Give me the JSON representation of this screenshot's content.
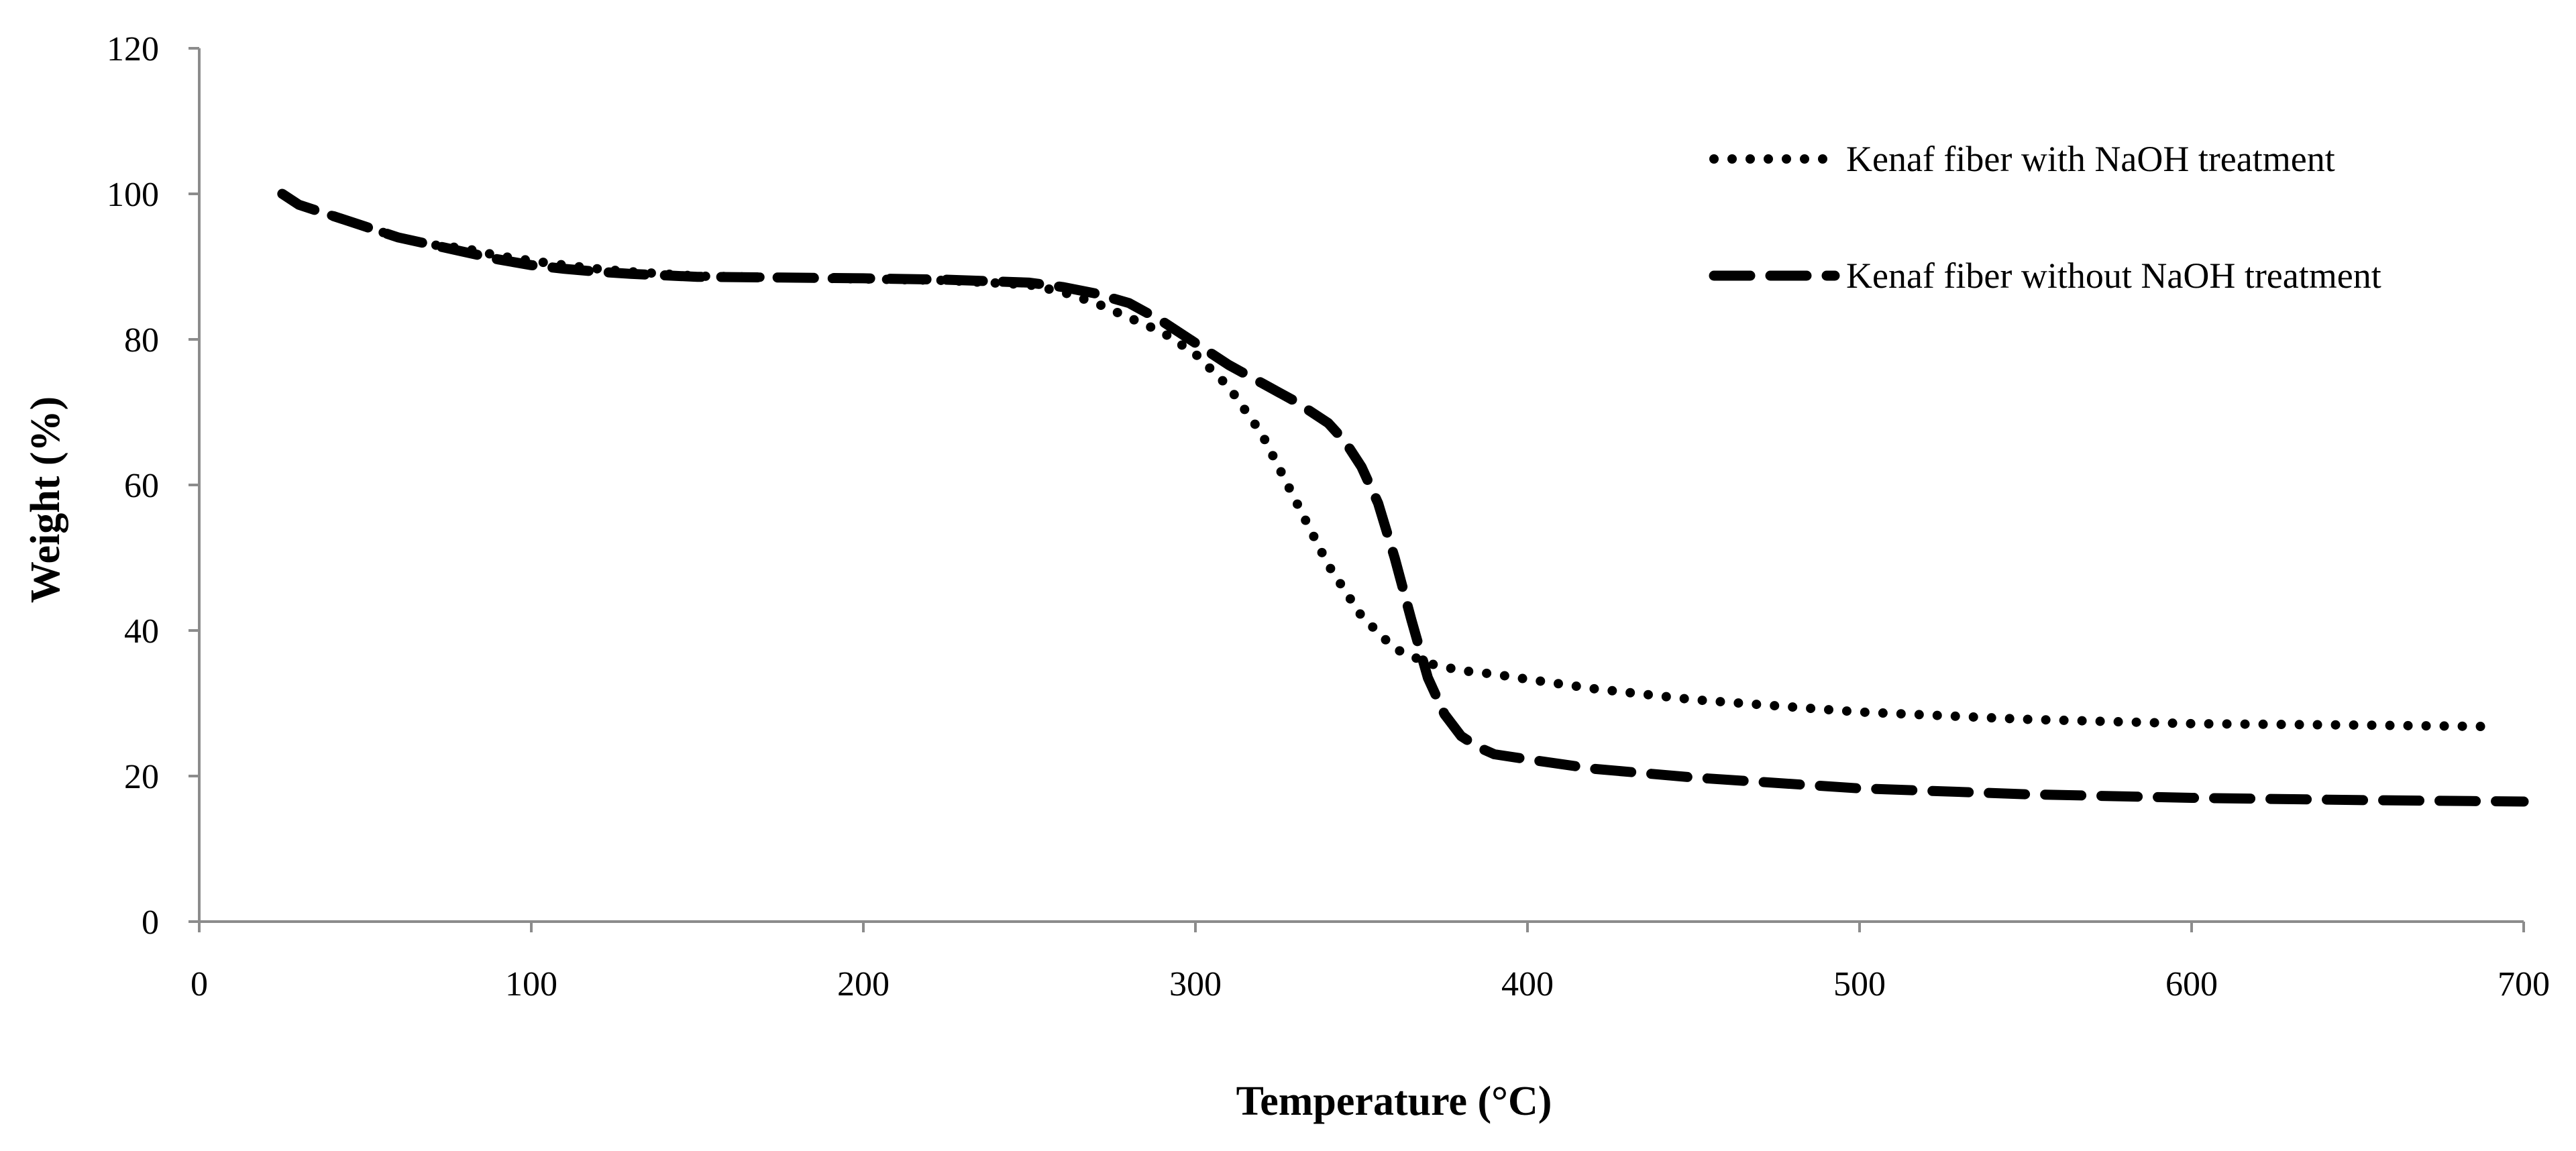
{
  "chart_data": {
    "type": "line",
    "title": "",
    "xlabel": "Temperature (°C)",
    "ylabel": "Weight (%)",
    "xlim": [
      0,
      700
    ],
    "ylim": [
      0,
      120
    ],
    "xticks": [
      0,
      100,
      200,
      300,
      400,
      500,
      600,
      700
    ],
    "yticks": [
      0,
      20,
      40,
      60,
      80,
      100,
      120
    ],
    "grid": false,
    "legend_position": "top-right",
    "series": [
      {
        "name": "Kenaf fiber with NaOH treatment",
        "style": "dotted",
        "color": "#000000",
        "x": [
          25,
          30,
          40,
          50,
          60,
          70,
          80,
          90,
          100,
          110,
          120,
          130,
          140,
          150,
          175,
          200,
          225,
          250,
          260,
          270,
          280,
          290,
          300,
          310,
          320,
          330,
          340,
          350,
          360,
          370,
          375,
          380,
          390,
          400,
          420,
          450,
          500,
          550,
          600,
          650,
          690
        ],
        "y": [
          100,
          98.5,
          97,
          95.5,
          94,
          93,
          92.5,
          91.5,
          90.8,
          90.2,
          89.7,
          89.3,
          89,
          88.7,
          88.5,
          88.3,
          88.1,
          87.5,
          86.5,
          85,
          83,
          81,
          78,
          73.5,
          67,
          58,
          49,
          42,
          37.5,
          35.5,
          35,
          34.5,
          34,
          33.3,
          32,
          30.5,
          28.8,
          27.8,
          27.2,
          27,
          26.8
        ]
      },
      {
        "name": "Kenaf fiber without NaOH treatment",
        "style": "dashed",
        "color": "#000000",
        "x": [
          25,
          30,
          40,
          50,
          60,
          70,
          80,
          90,
          100,
          110,
          120,
          130,
          140,
          150,
          175,
          200,
          225,
          250,
          260,
          270,
          280,
          290,
          300,
          310,
          320,
          330,
          340,
          345,
          350,
          355,
          360,
          365,
          370,
          375,
          380,
          385,
          390,
          400,
          420,
          450,
          500,
          550,
          600,
          650,
          700
        ],
        "y": [
          100,
          98.5,
          97,
          95.5,
          94,
          93,
          92,
          91,
          90.2,
          89.7,
          89.3,
          89,
          88.8,
          88.6,
          88.5,
          88.4,
          88.2,
          87.8,
          87.2,
          86.3,
          85,
          82.5,
          79.5,
          76.5,
          74,
          71.5,
          68.5,
          66,
          62.5,
          57.5,
          50,
          41.5,
          33.5,
          28.5,
          25.5,
          24,
          23,
          22.3,
          21,
          19.8,
          18.3,
          17.5,
          17,
          16.7,
          16.5
        ]
      }
    ]
  }
}
